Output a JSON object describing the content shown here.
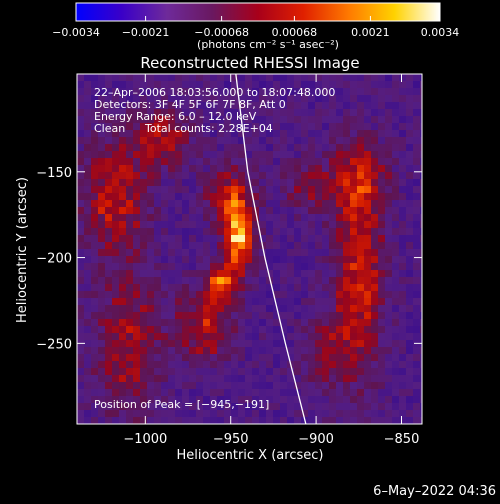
{
  "chart_data": {
    "type": "heatmap",
    "title": "Reconstructed RHESSI Image",
    "xlabel": "Heliocentric X (arcsec)",
    "ylabel": "Heliocentric Y (arcsec)",
    "xlim": [
      -1040,
      -838
    ],
    "ylim": [
      -297,
      -93
    ],
    "x_ticks": [
      {
        "value": -1000,
        "label": "−1000"
      },
      {
        "value": -950,
        "label": "−950"
      },
      {
        "value": -900,
        "label": "−900"
      },
      {
        "value": -850,
        "label": "−850"
      }
    ],
    "y_ticks": [
      {
        "value": -150,
        "label": "−150"
      },
      {
        "value": -200,
        "label": "−200"
      },
      {
        "value": -250,
        "label": "−250"
      }
    ],
    "colorbar": {
      "range": [
        -0.0034,
        0.0034
      ],
      "ticks": [
        {
          "value": -0.0034,
          "label": "−0.0034"
        },
        {
          "value": -0.0021,
          "label": "−0.0021"
        },
        {
          "value": -0.00068,
          "label": "−0.00068"
        },
        {
          "value": 0.00068,
          "label": "0.00068"
        },
        {
          "value": 0.0021,
          "label": "0.0021"
        },
        {
          "value": 0.0034,
          "label": "0.0034"
        }
      ],
      "unit_label": "(photons cm⁻² s⁻¹ asec⁻²)",
      "colors": [
        "#0000ff",
        "#3a00c8",
        "#6e2a9a",
        "#6a1860",
        "#a8001a",
        "#e02000",
        "#ff7a00",
        "#ffd200",
        "#ffffff"
      ]
    },
    "annotations": {
      "time_range": "22–Apr–2006 18:03:56.000 to 18:07:48.000",
      "detectors": "Detectors: 3F 4F 5F 6F 7F 8F, Att 0",
      "energy_range": "Energy Range: 6.0 – 12.0 keV",
      "method": "Clean",
      "total_counts": "Total counts: 2.28E+04",
      "peak": "Position of Peak = [−945,−191]"
    },
    "peak": {
      "x": -945,
      "y": -191
    },
    "limb": [
      {
        "x": -947,
        "y": -93
      },
      {
        "x": -940,
        "y": -150
      },
      {
        "x": -930,
        "y": -200
      },
      {
        "x": -918,
        "y": -250
      },
      {
        "x": -906,
        "y": -297
      }
    ],
    "sources": [
      {
        "x": -945,
        "y": -190,
        "intensity": 1.0,
        "sx": 6,
        "sy": 12
      },
      {
        "x": -955,
        "y": -215,
        "intensity": 0.75,
        "sx": 6,
        "sy": 7
      },
      {
        "x": -950,
        "y": -165,
        "intensity": 0.6,
        "sx": 10,
        "sy": 12
      },
      {
        "x": -965,
        "y": -240,
        "intensity": 0.5,
        "sx": 12,
        "sy": 15
      },
      {
        "x": -1018,
        "y": -165,
        "intensity": 0.55,
        "sx": 14,
        "sy": 22
      },
      {
        "x": -1010,
        "y": -250,
        "intensity": 0.45,
        "sx": 14,
        "sy": 28
      },
      {
        "x": -990,
        "y": -130,
        "intensity": 0.45,
        "sx": 12,
        "sy": 12
      },
      {
        "x": -875,
        "y": -215,
        "intensity": 0.6,
        "sx": 10,
        "sy": 40
      },
      {
        "x": -875,
        "y": -155,
        "intensity": 0.45,
        "sx": 12,
        "sy": 16
      },
      {
        "x": -905,
        "y": -160,
        "intensity": 0.35,
        "sx": 10,
        "sy": 10
      },
      {
        "x": -895,
        "y": -255,
        "intensity": 0.35,
        "sx": 10,
        "sy": 14
      }
    ]
  },
  "footer": {
    "date": "6–May–2022 04:36"
  }
}
